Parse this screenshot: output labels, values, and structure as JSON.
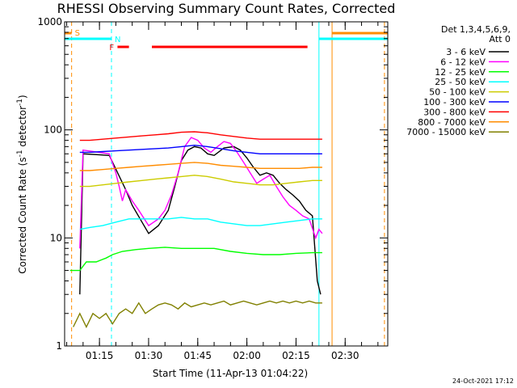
{
  "chart_data": {
    "type": "line",
    "title": "RHESSI Observing Summary Count Rates, Corrected",
    "xlabel": "Start Time (11-Apr-13 01:04:22)",
    "ylabel_prefix": "Corrected Count Rate (s",
    "ylabel_sup1": "-1",
    "ylabel_mid": " detector",
    "ylabel_sup2": "-1",
    "ylabel_suffix": ")",
    "y_scale": "log",
    "ylim": [
      1,
      1000
    ],
    "xlim": [
      "01:04:22",
      "02:43:00"
    ],
    "x_tick_labels": [
      "01:15",
      "01:30",
      "01:45",
      "02:00",
      "02:15",
      "02:30"
    ],
    "y_tick_labels": [
      "1",
      "10",
      "100",
      "1000"
    ],
    "legend_title_line1": "Det 1,3,4,5,6,9,",
    "legend_title_line2": "Att 0",
    "legend_position": "right",
    "series": [
      {
        "name": "3 - 6 keV",
        "color": "#000000",
        "points": [
          [
            "01:09:00",
            3
          ],
          [
            "01:10:00",
            60
          ],
          [
            "01:18:00",
            58
          ],
          [
            "01:23:00",
            28
          ],
          [
            "01:25:00",
            20
          ],
          [
            "01:28:00",
            14
          ],
          [
            "01:30:00",
            11
          ],
          [
            "01:33:00",
            13
          ],
          [
            "01:36:00",
            18
          ],
          [
            "01:38:00",
            30
          ],
          [
            "01:40:00",
            52
          ],
          [
            "01:42:00",
            65
          ],
          [
            "01:44:00",
            70
          ],
          [
            "01:46:00",
            68
          ],
          [
            "01:48:00",
            60
          ],
          [
            "01:50:00",
            58
          ],
          [
            "01:53:00",
            68
          ],
          [
            "01:56:00",
            70
          ],
          [
            "01:58:00",
            65
          ],
          [
            "02:00:00",
            55
          ],
          [
            "02:02:00",
            45
          ],
          [
            "02:04:00",
            38
          ],
          [
            "02:06:00",
            40
          ],
          [
            "02:08:00",
            38
          ],
          [
            "02:10:00",
            32
          ],
          [
            "02:12:00",
            28
          ],
          [
            "02:14:00",
            25
          ],
          [
            "02:16:00",
            22
          ],
          [
            "02:18:00",
            18
          ],
          [
            "02:20:00",
            16
          ],
          [
            "02:21:30",
            4
          ],
          [
            "02:22:30",
            3
          ]
        ]
      },
      {
        "name": "6 - 12 keV",
        "color": "#ff00ff",
        "points": [
          [
            "01:09:00",
            8
          ],
          [
            "01:10:00",
            65
          ],
          [
            "01:18:00",
            60
          ],
          [
            "01:20:00",
            40
          ],
          [
            "01:21:00",
            30
          ],
          [
            "01:22:00",
            22
          ],
          [
            "01:23:00",
            28
          ],
          [
            "01:25:00",
            22
          ],
          [
            "01:27:00",
            18
          ],
          [
            "01:30:00",
            13
          ],
          [
            "01:33:00",
            15
          ],
          [
            "01:35:00",
            18
          ],
          [
            "01:37:00",
            25
          ],
          [
            "01:39:00",
            40
          ],
          [
            "01:41:00",
            70
          ],
          [
            "01:43:00",
            85
          ],
          [
            "01:45:00",
            80
          ],
          [
            "01:47:00",
            68
          ],
          [
            "01:49:00",
            62
          ],
          [
            "01:51:00",
            70
          ],
          [
            "01:53:00",
            78
          ],
          [
            "01:55:00",
            75
          ],
          [
            "01:57:00",
            62
          ],
          [
            "01:59:00",
            50
          ],
          [
            "02:01:00",
            40
          ],
          [
            "02:03:00",
            32
          ],
          [
            "02:05:00",
            35
          ],
          [
            "02:07:00",
            38
          ],
          [
            "02:09:00",
            30
          ],
          [
            "02:11:00",
            24
          ],
          [
            "02:13:00",
            20
          ],
          [
            "02:15:00",
            18
          ],
          [
            "02:17:00",
            16
          ],
          [
            "02:19:00",
            15
          ],
          [
            "02:21:00",
            10
          ],
          [
            "02:22:00",
            12
          ],
          [
            "02:23:00",
            11
          ]
        ]
      },
      {
        "name": "12 - 25 keV",
        "color": "#00ff00",
        "points": [
          [
            "01:06:00",
            5
          ],
          [
            "01:09:00",
            5
          ],
          [
            "01:11:00",
            6
          ],
          [
            "01:14:00",
            6
          ],
          [
            "01:17:00",
            6.5
          ],
          [
            "01:19:00",
            7
          ],
          [
            "01:22:00",
            7.5
          ],
          [
            "01:26:00",
            7.8
          ],
          [
            "01:30:00",
            8
          ],
          [
            "01:35:00",
            8.2
          ],
          [
            "01:40:00",
            8
          ],
          [
            "01:45:00",
            8
          ],
          [
            "01:50:00",
            8
          ],
          [
            "01:55:00",
            7.5
          ],
          [
            "02:00:00",
            7.2
          ],
          [
            "02:05:00",
            7
          ],
          [
            "02:10:00",
            7
          ],
          [
            "02:15:00",
            7.2
          ],
          [
            "02:20:00",
            7.3
          ],
          [
            "02:23:00",
            7.3
          ]
        ]
      },
      {
        "name": "25 - 50 keV",
        "color": "#00ffff",
        "points": [
          [
            "01:09:00",
            12
          ],
          [
            "01:12:00",
            12.5
          ],
          [
            "01:16:00",
            13
          ],
          [
            "01:20:00",
            14
          ],
          [
            "01:24:00",
            15
          ],
          [
            "01:28:00",
            15
          ],
          [
            "01:32:00",
            15
          ],
          [
            "01:36:00",
            15
          ],
          [
            "01:40:00",
            15.5
          ],
          [
            "01:44:00",
            15
          ],
          [
            "01:48:00",
            15
          ],
          [
            "01:52:00",
            14
          ],
          [
            "01:56:00",
            13.5
          ],
          [
            "02:00:00",
            13
          ],
          [
            "02:04:00",
            13
          ],
          [
            "02:08:00",
            13.5
          ],
          [
            "02:12:00",
            14
          ],
          [
            "02:16:00",
            14.5
          ],
          [
            "02:20:00",
            15
          ],
          [
            "02:23:00",
            15
          ]
        ]
      },
      {
        "name": "50 - 100 keV",
        "color": "#cccc00",
        "points": [
          [
            "01:09:00",
            30
          ],
          [
            "01:12:00",
            30
          ],
          [
            "01:16:00",
            31
          ],
          [
            "01:20:00",
            32
          ],
          [
            "01:24:00",
            33
          ],
          [
            "01:28:00",
            34
          ],
          [
            "01:32:00",
            35
          ],
          [
            "01:36:00",
            36
          ],
          [
            "01:40:00",
            37
          ],
          [
            "01:44:00",
            38
          ],
          [
            "01:48:00",
            37
          ],
          [
            "01:52:00",
            35
          ],
          [
            "01:56:00",
            33
          ],
          [
            "02:00:00",
            32
          ],
          [
            "02:04:00",
            31
          ],
          [
            "02:08:00",
            31
          ],
          [
            "02:12:00",
            32
          ],
          [
            "02:16:00",
            33
          ],
          [
            "02:20:00",
            34
          ],
          [
            "02:23:00",
            34
          ]
        ]
      },
      {
        "name": "100 - 300 keV",
        "color": "#0000ff",
        "points": [
          [
            "01:09:00",
            62
          ],
          [
            "01:12:00",
            62
          ],
          [
            "01:16:00",
            63
          ],
          [
            "01:20:00",
            64
          ],
          [
            "01:24:00",
            65
          ],
          [
            "01:28:00",
            66
          ],
          [
            "01:32:00",
            67
          ],
          [
            "01:36:00",
            68
          ],
          [
            "01:40:00",
            70
          ],
          [
            "01:44:00",
            72
          ],
          [
            "01:48:00",
            70
          ],
          [
            "01:52:00",
            67
          ],
          [
            "01:56:00",
            64
          ],
          [
            "02:00:00",
            62
          ],
          [
            "02:04:00",
            60
          ],
          [
            "02:08:00",
            60
          ],
          [
            "02:12:00",
            60
          ],
          [
            "02:16:00",
            60
          ],
          [
            "02:20:00",
            60
          ],
          [
            "02:23:00",
            60
          ]
        ]
      },
      {
        "name": "300 - 800 keV",
        "color": "#ff0000",
        "points": [
          [
            "01:09:00",
            80
          ],
          [
            "01:12:00",
            80
          ],
          [
            "01:16:00",
            82
          ],
          [
            "01:20:00",
            84
          ],
          [
            "01:24:00",
            86
          ],
          [
            "01:28:00",
            88
          ],
          [
            "01:32:00",
            90
          ],
          [
            "01:36:00",
            92
          ],
          [
            "01:40:00",
            95
          ],
          [
            "01:44:00",
            96
          ],
          [
            "01:48:00",
            94
          ],
          [
            "01:52:00",
            90
          ],
          [
            "01:56:00",
            87
          ],
          [
            "02:00:00",
            84
          ],
          [
            "02:04:00",
            82
          ],
          [
            "02:08:00",
            82
          ],
          [
            "02:12:00",
            82
          ],
          [
            "02:16:00",
            82
          ],
          [
            "02:20:00",
            82
          ],
          [
            "02:23:00",
            82
          ]
        ]
      },
      {
        "name": "800 - 7000 keV",
        "color": "#ff8c00",
        "points": [
          [
            "01:09:00",
            42
          ],
          [
            "01:12:00",
            42
          ],
          [
            "01:16:00",
            43
          ],
          [
            "01:20:00",
            44
          ],
          [
            "01:24:00",
            45
          ],
          [
            "01:28:00",
            46
          ],
          [
            "01:32:00",
            47
          ],
          [
            "01:36:00",
            48
          ],
          [
            "01:40:00",
            49
          ],
          [
            "01:44:00",
            50
          ],
          [
            "01:48:00",
            49
          ],
          [
            "01:52:00",
            47
          ],
          [
            "01:56:00",
            46
          ],
          [
            "02:00:00",
            45
          ],
          [
            "02:04:00",
            44
          ],
          [
            "02:08:00",
            44
          ],
          [
            "02:12:00",
            44
          ],
          [
            "02:16:00",
            44
          ],
          [
            "02:20:00",
            45
          ],
          [
            "02:23:00",
            45
          ]
        ]
      },
      {
        "name": "7000 - 15000 keV",
        "color": "#808000",
        "points": [
          [
            "01:07:00",
            1.5
          ],
          [
            "01:09:00",
            2
          ],
          [
            "01:11:00",
            1.5
          ],
          [
            "01:13:00",
            2
          ],
          [
            "01:15:00",
            1.8
          ],
          [
            "01:17:00",
            2
          ],
          [
            "01:19:00",
            1.6
          ],
          [
            "01:21:00",
            2
          ],
          [
            "01:23:00",
            2.2
          ],
          [
            "01:25:00",
            2
          ],
          [
            "01:27:00",
            2.5
          ],
          [
            "01:29:00",
            2
          ],
          [
            "01:31:00",
            2.2
          ],
          [
            "01:33:00",
            2.4
          ],
          [
            "01:35:00",
            2.5
          ],
          [
            "01:37:00",
            2.4
          ],
          [
            "01:39:00",
            2.2
          ],
          [
            "01:41:00",
            2.5
          ],
          [
            "01:43:00",
            2.3
          ],
          [
            "01:45:00",
            2.4
          ],
          [
            "01:47:00",
            2.5
          ],
          [
            "01:49:00",
            2.4
          ],
          [
            "01:51:00",
            2.5
          ],
          [
            "01:53:00",
            2.6
          ],
          [
            "01:55:00",
            2.4
          ],
          [
            "01:57:00",
            2.5
          ],
          [
            "01:59:00",
            2.6
          ],
          [
            "02:01:00",
            2.5
          ],
          [
            "02:03:00",
            2.4
          ],
          [
            "02:05:00",
            2.5
          ],
          [
            "02:07:00",
            2.6
          ],
          [
            "02:09:00",
            2.5
          ],
          [
            "02:11:00",
            2.6
          ],
          [
            "02:13:00",
            2.5
          ],
          [
            "02:15:00",
            2.6
          ],
          [
            "02:17:00",
            2.5
          ],
          [
            "02:19:00",
            2.6
          ],
          [
            "02:21:00",
            2.5
          ],
          [
            "02:23:00",
            2.5
          ]
        ]
      }
    ],
    "annotations": {
      "flag_S": "S",
      "flag_N": "N",
      "flag_F": "F",
      "night_color": "#00ffff",
      "saa_color": "#ff8c00",
      "flare_color": "#ff0000",
      "night_intervals": [
        [
          "01:04:22",
          "01:18:40"
        ],
        [
          "02:22:00",
          "02:43:00"
        ]
      ],
      "saa_intervals": [
        [
          "01:04:22",
          "01:06:30"
        ],
        [
          "02:26:00",
          "02:43:00"
        ]
      ],
      "flare_intervals": [
        [
          "01:20:30",
          "01:24:00"
        ],
        [
          "01:31:00",
          "02:18:30"
        ]
      ],
      "dashed_markers": [
        {
          "time": "01:06:30",
          "color": "#ff8c00"
        },
        {
          "time": "01:18:40",
          "color": "#00ffff"
        },
        {
          "time": "02:42:00",
          "color": "#ff8c00"
        }
      ],
      "solid_markers": [
        {
          "time": "01:04:22",
          "color": "#00ffff"
        },
        {
          "time": "02:22:00",
          "color": "#00ffff"
        },
        {
          "time": "02:26:00",
          "color": "#ff8c00"
        }
      ]
    },
    "footer_timestamp": "24-Oct-2021 17:12"
  }
}
